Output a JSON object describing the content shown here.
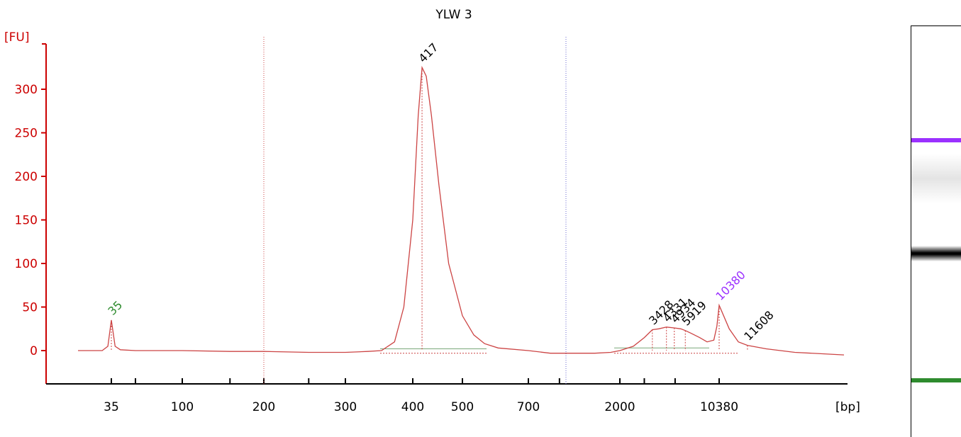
{
  "chart_data": {
    "type": "line",
    "title": "YLW 3",
    "ylabel": "[FU]",
    "xlabel": "[bp]",
    "ylim": [
      -40,
      340
    ],
    "y_ticks": [
      0,
      50,
      100,
      150,
      200,
      250,
      300
    ],
    "x_ticks": [
      "35",
      "100",
      "200",
      "300",
      "400",
      "500",
      "700",
      "2000",
      "10380"
    ],
    "grid": "off",
    "colors": {
      "axis": "#cc0000",
      "trace": "#cc4444",
      "lower_marker": "#2e8b2e",
      "upper_marker": "#9b30ff",
      "peak_label": "#000000"
    },
    "series": [
      {
        "x": [
          20,
          30,
          33,
          35,
          37,
          40,
          50,
          100,
          150,
          200,
          250,
          300,
          330,
          350,
          370,
          385,
          400,
          410,
          417,
          425,
          435,
          450,
          470,
          500,
          530,
          560,
          600,
          700,
          900,
          1200,
          1500,
          1800,
          2000,
          2500,
          3000,
          3428,
          3800,
          4331,
          4934,
          5500,
          5919,
          6500,
          7500,
          8500,
          9500,
          10000,
          10380,
          10800,
          11200,
          11608,
          12500,
          14000,
          17000
        ],
        "y": [
          0,
          0,
          5,
          35,
          5,
          1,
          0,
          0,
          -1,
          -1,
          -2,
          -2,
          -1,
          0,
          10,
          50,
          150,
          270,
          325,
          315,
          270,
          190,
          100,
          40,
          18,
          8,
          3,
          0,
          -3,
          -3,
          -3,
          -2,
          0,
          5,
          15,
          24,
          25,
          27,
          26,
          25,
          23,
          20,
          15,
          10,
          12,
          28,
          52,
          25,
          10,
          6,
          2,
          -2,
          -5
        ]
      }
    ],
    "peaks": [
      {
        "label": "35",
        "x": 35,
        "y": 35,
        "kind": "lower_marker"
      },
      {
        "label": "417",
        "x": 417,
        "y": 325,
        "kind": "peak"
      },
      {
        "label": "3428",
        "x": 3428,
        "y": 24,
        "kind": "peak"
      },
      {
        "label": "4331",
        "x": 4331,
        "y": 27,
        "kind": "peak"
      },
      {
        "label": "4934",
        "x": 4934,
        "y": 26,
        "kind": "peak"
      },
      {
        "label": "5919",
        "x": 5919,
        "y": 23,
        "kind": "peak"
      },
      {
        "label": "10380",
        "x": 10380,
        "y": 52,
        "kind": "upper_marker"
      },
      {
        "label": "11608",
        "x": 11608,
        "y": 6,
        "kind": "peak"
      }
    ],
    "gel_bands": [
      {
        "name": "upper-marker",
        "x": 10380,
        "color": "#9b30ff"
      },
      {
        "name": "main-band",
        "x": 417,
        "color": "#000000"
      },
      {
        "name": "lower-marker",
        "x": 35,
        "color": "#2e8b2e"
      }
    ]
  }
}
